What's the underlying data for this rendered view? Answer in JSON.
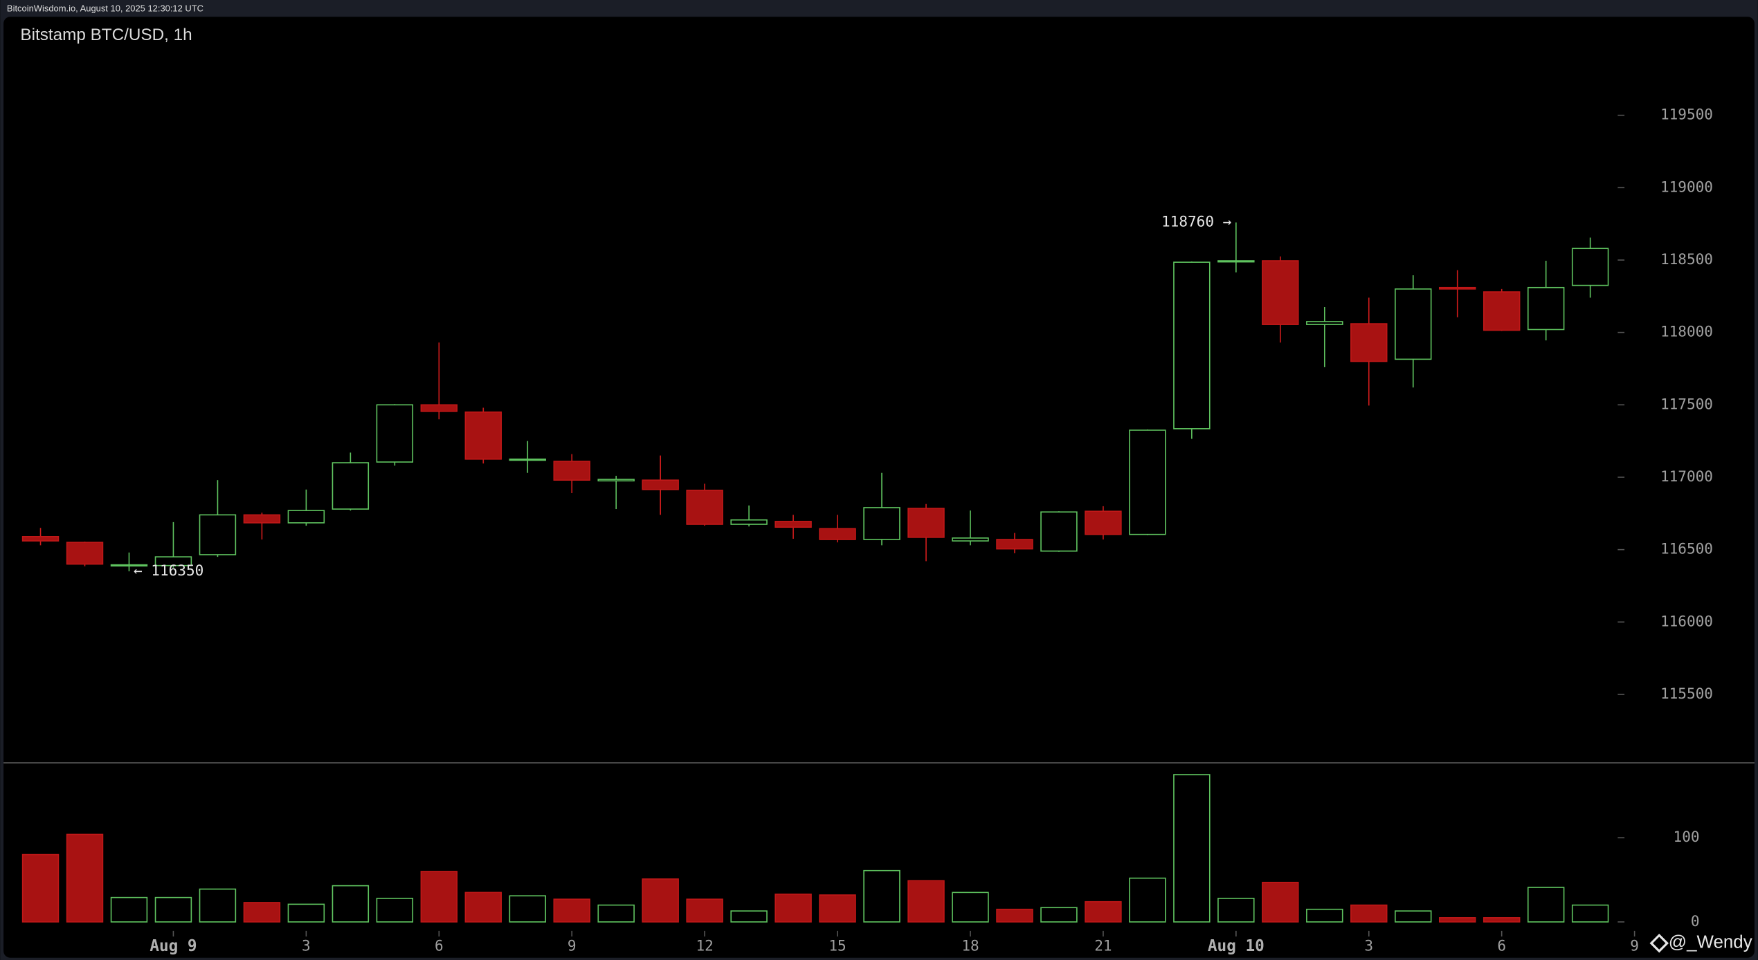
{
  "header": "BitcoinWisdom.io, August 10, 2025 12:30:12 UTC",
  "watermark": "@_Wendy",
  "chart_data": {
    "type": "candlestick",
    "title": "Bitstamp BTC/USD, 1h",
    "up_color": "#5fc35f",
    "down_color": "#a81212",
    "open": [
      116590,
      116550,
      116390,
      116390,
      116465,
      116740,
      116685,
      116780,
      117105,
      117500,
      117450,
      117120,
      117110,
      116975,
      116980,
      116910,
      116675,
      116695,
      116645,
      116570,
      116785,
      116560,
      116570,
      116490,
      116765,
      116605,
      117335,
      118490,
      118495,
      118055,
      118060,
      117815,
      118310,
      118280,
      118020,
      118325
    ],
    "high": [
      116650,
      116555,
      116480,
      116690,
      116980,
      116755,
      116915,
      117170,
      117505,
      117930,
      117480,
      117250,
      117160,
      117010,
      117150,
      116955,
      116805,
      116740,
      116740,
      117030,
      116815,
      116770,
      116615,
      116765,
      116800,
      117330,
      118490,
      118760,
      118525,
      118175,
      118240,
      118395,
      118430,
      118300,
      118495,
      118655
    ],
    "low": [
      116530,
      116385,
      116350,
      116375,
      116450,
      116570,
      116665,
      116770,
      117080,
      117400,
      117095,
      117030,
      116890,
      116780,
      116740,
      116665,
      116660,
      116575,
      116550,
      116530,
      116420,
      116530,
      116475,
      116485,
      116570,
      116600,
      117265,
      118415,
      117930,
      117760,
      117495,
      117620,
      118105,
      118010,
      117945,
      118240
    ],
    "close": [
      116560,
      116400,
      116395,
      116450,
      116740,
      116685,
      116770,
      117100,
      117500,
      117455,
      117125,
      117125,
      116980,
      116985,
      116915,
      116675,
      116705,
      116655,
      116570,
      116790,
      116585,
      116580,
      116505,
      116760,
      116605,
      117325,
      118485,
      118495,
      118055,
      118075,
      117800,
      118300,
      118300,
      118015,
      118310,
      118580
    ],
    "volume": [
      80,
      104,
      29,
      29,
      39,
      23,
      21,
      43,
      28,
      60,
      35,
      31,
      27,
      20,
      51,
      27,
      13,
      33,
      32,
      61,
      49,
      35,
      15,
      17,
      24,
      52,
      175,
      28,
      47,
      15,
      20,
      13,
      5,
      5,
      41,
      20
    ],
    "xlim": [
      -0.5,
      36.5
    ],
    "xticks": [
      {
        "value": 3,
        "label": "Aug 9"
      },
      {
        "value": 6,
        "label": "3"
      },
      {
        "value": 9,
        "label": "6"
      },
      {
        "value": 12,
        "label": "9"
      },
      {
        "value": 15,
        "label": "12"
      },
      {
        "value": 18,
        "label": "15"
      },
      {
        "value": 21,
        "label": "18"
      },
      {
        "value": 24,
        "label": "21"
      },
      {
        "value": 27,
        "label": "Aug 10"
      },
      {
        "value": 30,
        "label": "3"
      },
      {
        "value": 33,
        "label": "6"
      },
      {
        "value": 36,
        "label": "9"
      }
    ],
    "ylim": [
      115035,
      120180
    ],
    "yticks": [
      115500,
      116000,
      116500,
      117000,
      117500,
      118000,
      118500,
      119000,
      119500
    ],
    "volume_ylim": [
      0,
      189
    ],
    "volume_yticks": [
      0,
      100
    ],
    "annotations": [
      {
        "text": "118760 →",
        "index": 27,
        "at": "high"
      },
      {
        "text": "← 116350",
        "index": 2,
        "at": "low"
      }
    ]
  }
}
